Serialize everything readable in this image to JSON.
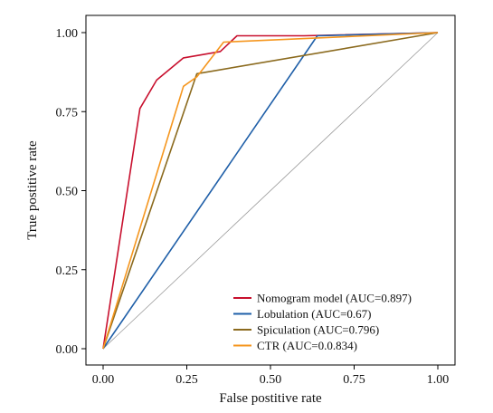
{
  "chart_data": {
    "type": "line",
    "xlabel": "False postitive rate",
    "ylabel": "True postitive rate",
    "xlim": [
      -0.05,
      1.05
    ],
    "ylim": [
      -0.05,
      1.05
    ],
    "x_ticks": [
      "0.00",
      "0.25",
      "0.50",
      "0.75",
      "1.00"
    ],
    "y_ticks": [
      "0.00",
      "0.25",
      "0.50",
      "0.75",
      "1.00"
    ],
    "grid": false,
    "legend_position": "bottom-right",
    "reference_line": {
      "x": [
        0,
        1
      ],
      "y": [
        0,
        1
      ],
      "color": "#9a9a9a"
    },
    "series": [
      {
        "name": "Nomogram model (AUC=0.897)",
        "color": "#c8102e",
        "x": [
          0.0,
          0.11,
          0.16,
          0.24,
          0.35,
          0.4,
          0.6,
          1.0
        ],
        "y": [
          0.0,
          0.76,
          0.85,
          0.92,
          0.94,
          0.99,
          0.99,
          1.0
        ]
      },
      {
        "name": "Lobulation (AUC=0.67)",
        "color": "#1f5fa8",
        "x": [
          0.0,
          0.64,
          1.0
        ],
        "y": [
          0.0,
          0.99,
          1.0
        ]
      },
      {
        "name": "Spiculation (AUC=0.796)",
        "color": "#8b6a1e",
        "x": [
          0.0,
          0.28,
          1.0
        ],
        "y": [
          0.0,
          0.87,
          1.0
        ]
      },
      {
        "name": "CTR (AUC=0.0.834)",
        "color": "#f5961e",
        "x": [
          0.0,
          0.24,
          0.28,
          0.36,
          1.0
        ],
        "y": [
          0.0,
          0.83,
          0.86,
          0.97,
          1.0
        ]
      }
    ]
  }
}
